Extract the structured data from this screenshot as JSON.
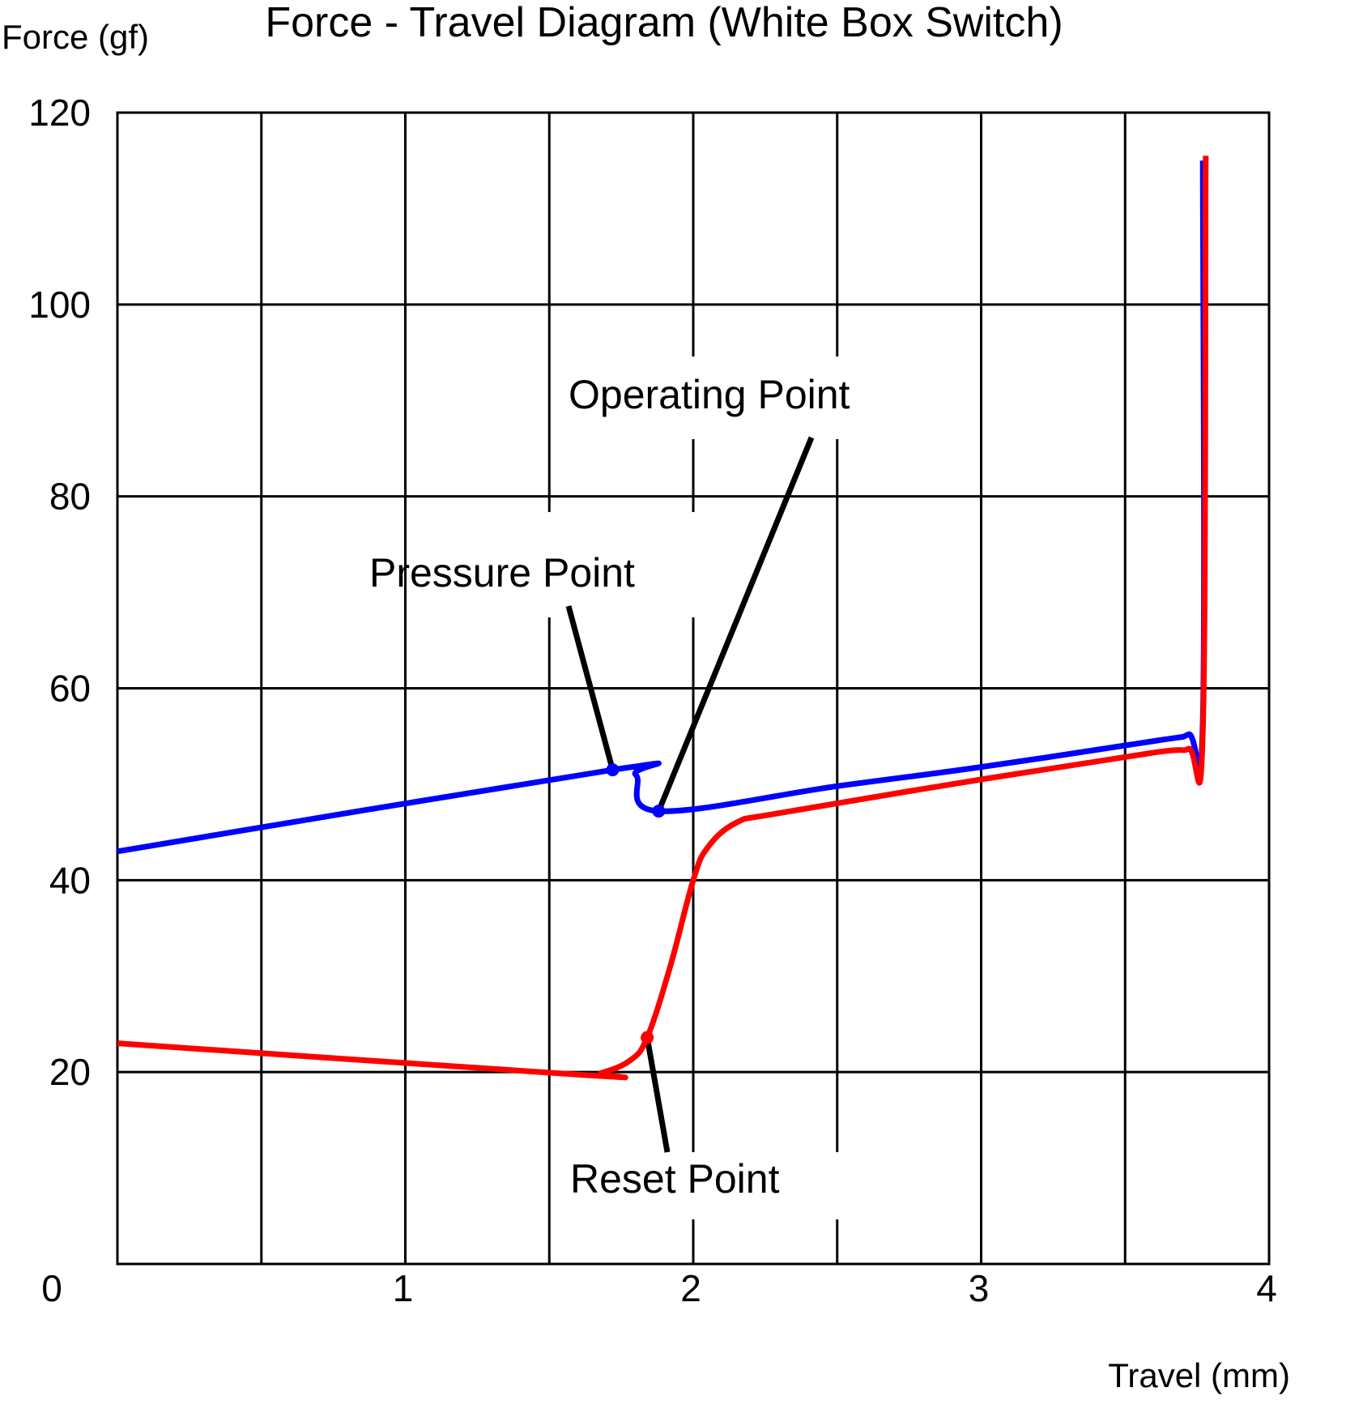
{
  "chart_data": {
    "type": "line",
    "title": "Force - Travel Diagram (White Box Switch)",
    "xlabel": "Travel (mm)",
    "ylabel": "Force (gf)",
    "xlim": [
      0,
      4
    ],
    "ylim": [
      0,
      120
    ],
    "x_ticks": [
      "0",
      "1",
      "2",
      "3",
      "4"
    ],
    "y_ticks": [
      "20",
      "40",
      "60",
      "80",
      "100",
      "120"
    ],
    "grid": true,
    "colors": {
      "press": "#0000ff",
      "release": "#ff0000",
      "grid": "#000000"
    },
    "series": [
      {
        "values": [
          [
            0,
            43
          ],
          [
            1.72,
            51.5
          ],
          [
            1.8,
            51
          ],
          [
            1.88,
            47.2
          ],
          [
            2.5,
            49.8
          ],
          [
            3.0,
            51.8
          ],
          [
            3.6,
            54.5
          ],
          [
            3.72,
            55.2
          ],
          [
            3.77,
            56.8
          ],
          [
            3.77,
            115
          ]
        ]
      },
      {
        "values": [
          [
            0,
            23
          ],
          [
            1.62,
            19.7
          ],
          [
            1.68,
            19.9
          ],
          [
            1.78,
            21.2
          ],
          [
            1.84,
            23.6
          ],
          [
            1.92,
            31
          ],
          [
            2.0,
            40
          ],
          [
            2.05,
            43.4
          ],
          [
            2.15,
            46
          ],
          [
            2.3,
            47
          ],
          [
            3.0,
            50.5
          ],
          [
            3.6,
            53.3
          ],
          [
            3.72,
            53.7
          ],
          [
            3.77,
            55.5
          ],
          [
            3.78,
            115.5
          ]
        ]
      }
    ],
    "annotations": [
      {
        "label": "Operating Point",
        "x": 1.88,
        "y": 47.2
      },
      {
        "label": "Pressure Point",
        "x": 1.72,
        "y": 51.5
      },
      {
        "label": "Reset Point",
        "x": 1.84,
        "y": 23.6
      }
    ]
  }
}
